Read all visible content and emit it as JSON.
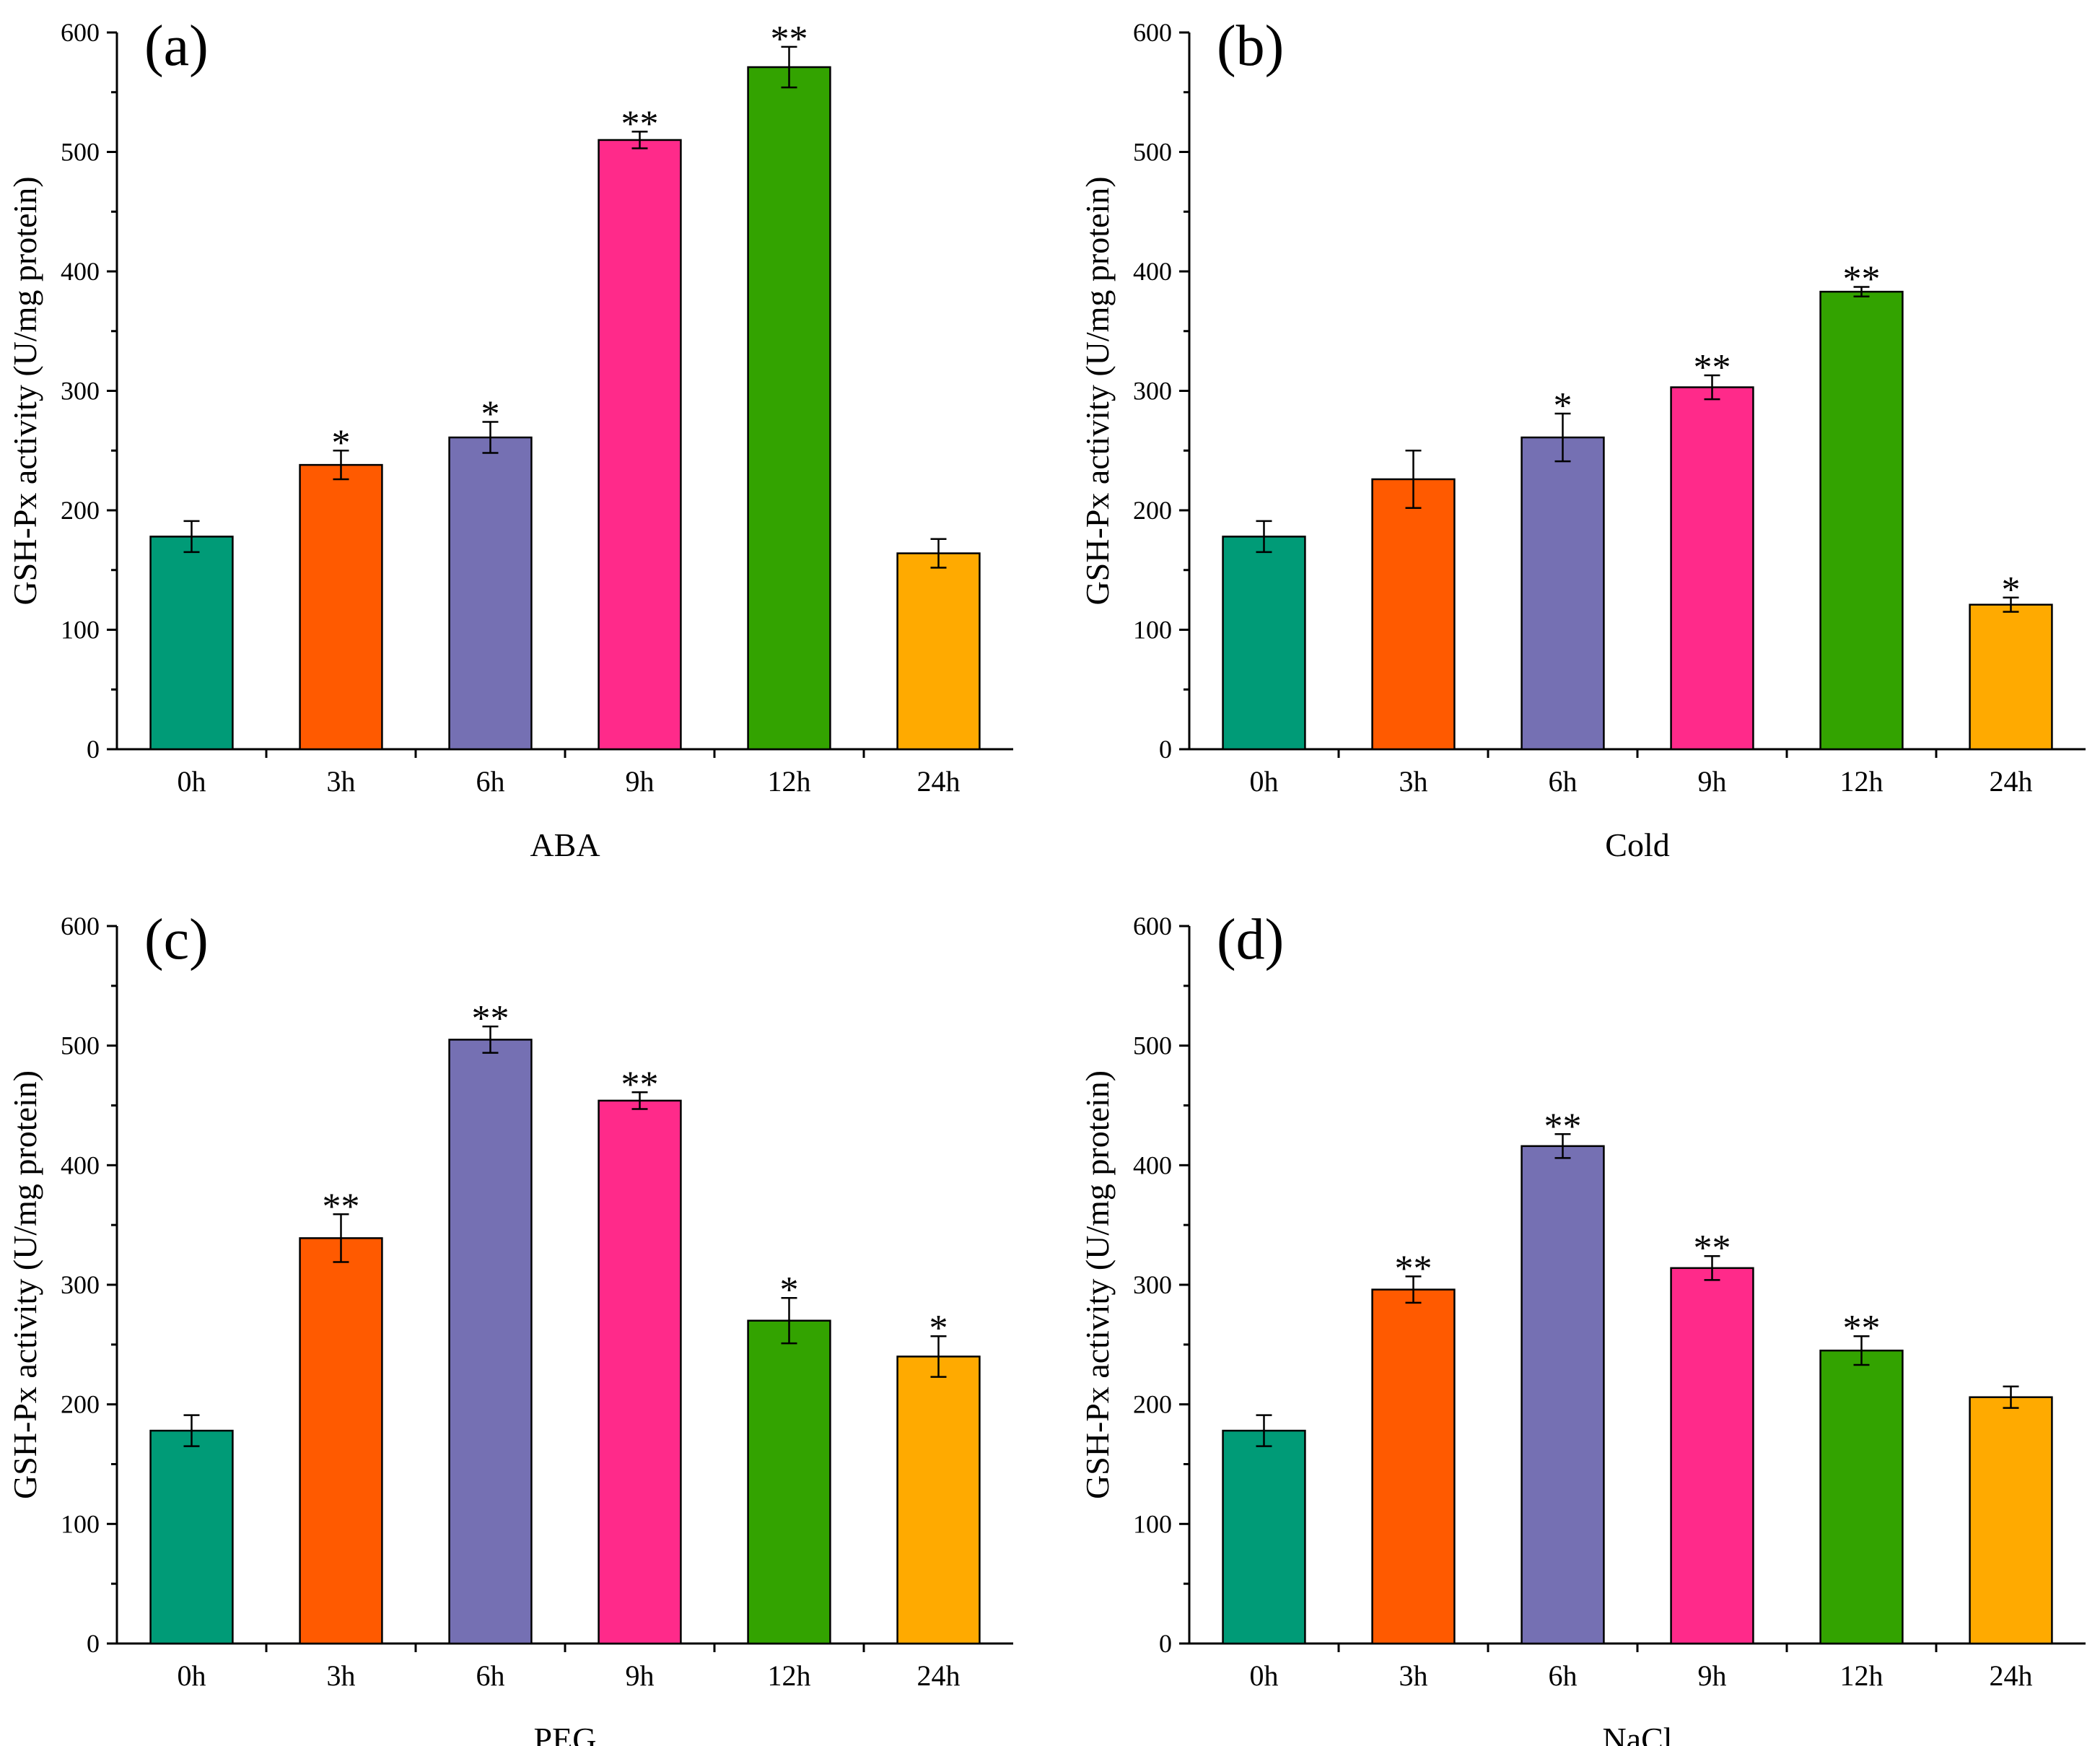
{
  "chart_data": [
    {
      "type": "bar",
      "panel_label": "(a)",
      "xlabel": "ABA",
      "ylabel": "GSH-Px activity (U/mg protein)",
      "ylim": [
        0,
        600
      ],
      "yticks": [
        "0",
        "100",
        "200",
        "300",
        "400",
        "500",
        "600"
      ],
      "categories": [
        "0h",
        "3h",
        "6h",
        "9h",
        "12h",
        "24h"
      ],
      "values": [
        178,
        238,
        261,
        510,
        571,
        164
      ],
      "errors": [
        13,
        12,
        13,
        7,
        17,
        12
      ],
      "significance": [
        "",
        "*",
        "*",
        "**",
        "**",
        ""
      ],
      "colors": [
        "#009B77",
        "#FF5A00",
        "#7570B3",
        "#FF2A8A",
        "#33A300",
        "#FFAA00"
      ]
    },
    {
      "type": "bar",
      "panel_label": "(b)",
      "xlabel": "Cold",
      "ylabel": "GSH-Px activity (U/mg protein)",
      "ylim": [
        0,
        600
      ],
      "yticks": [
        "0",
        "100",
        "200",
        "300",
        "400",
        "500",
        "600"
      ],
      "categories": [
        "0h",
        "3h",
        "6h",
        "9h",
        "12h",
        "24h"
      ],
      "values": [
        178,
        226,
        261,
        303,
        383,
        121
      ],
      "errors": [
        13,
        24,
        20,
        10,
        4,
        6
      ],
      "significance": [
        "",
        "",
        "*",
        "**",
        "**",
        "*"
      ],
      "colors": [
        "#009B77",
        "#FF5A00",
        "#7570B3",
        "#FF2A8A",
        "#33A300",
        "#FFAA00"
      ]
    },
    {
      "type": "bar",
      "panel_label": "(c)",
      "xlabel": "PEG",
      "ylabel": "GSH-Px activity (U/mg protein)",
      "ylim": [
        0,
        600
      ],
      "yticks": [
        "0",
        "100",
        "200",
        "300",
        "400",
        "500",
        "600"
      ],
      "categories": [
        "0h",
        "3h",
        "6h",
        "9h",
        "12h",
        "24h"
      ],
      "values": [
        178,
        339,
        505,
        454,
        270,
        240
      ],
      "errors": [
        13,
        20,
        11,
        7,
        19,
        17
      ],
      "significance": [
        "",
        "**",
        "**",
        "**",
        "*",
        "*"
      ],
      "colors": [
        "#009B77",
        "#FF5A00",
        "#7570B3",
        "#FF2A8A",
        "#33A300",
        "#FFAA00"
      ]
    },
    {
      "type": "bar",
      "panel_label": "(d)",
      "xlabel": "NaCl",
      "ylabel": "GSH-Px activity (U/mg protein)",
      "ylim": [
        0,
        600
      ],
      "yticks": [
        "0",
        "100",
        "200",
        "300",
        "400",
        "500",
        "600"
      ],
      "categories": [
        "0h",
        "3h",
        "6h",
        "9h",
        "12h",
        "24h"
      ],
      "values": [
        178,
        296,
        416,
        314,
        245,
        206
      ],
      "errors": [
        13,
        11,
        10,
        10,
        12,
        9
      ],
      "significance": [
        "",
        "**",
        "**",
        "**",
        "**",
        ""
      ],
      "colors": [
        "#009B77",
        "#FF5A00",
        "#7570B3",
        "#FF2A8A",
        "#33A300",
        "#FFAA00"
      ]
    }
  ]
}
